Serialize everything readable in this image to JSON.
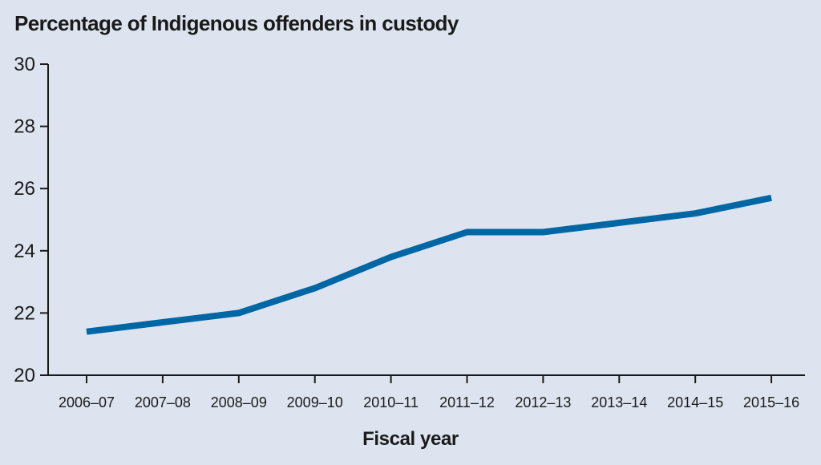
{
  "chart_data": {
    "type": "line",
    "title": "",
    "ylabel": "Percentage of Indigenous offenders in custody",
    "xlabel": "Fiscal year",
    "categories": [
      "2006–07",
      "2007–08",
      "2008–09",
      "2009–10",
      "2010–11",
      "2011–12",
      "2012–13",
      "2013–14",
      "2014–15",
      "2015–16"
    ],
    "series": [
      {
        "values": [
          21.4,
          21.7,
          22.0,
          22.8,
          23.8,
          24.6,
          24.6,
          24.9,
          25.2,
          25.7
        ]
      }
    ],
    "ylim": [
      20,
      30
    ],
    "yticks": [
      20,
      22,
      24,
      26,
      28,
      30
    ],
    "grid": false,
    "legend": "none",
    "colors": {
      "line": "#0066a4",
      "axis": "#1a1a1a",
      "background": "#dde4ef"
    }
  }
}
